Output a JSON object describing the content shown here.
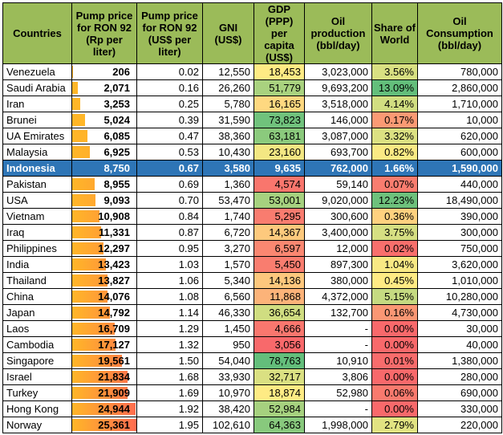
{
  "headers": {
    "country": "Countries",
    "pump_rp": "Pump price for RON 92 (Rp per liter)",
    "pump_usd": "Pump price for RON 92 (US$ per liter)",
    "gni": "GNI (US$)",
    "gdp": "GDP (PPP) per capita (US$)",
    "oil_prod": "Oil production (bbl/day)",
    "share": "Share of World",
    "consumption": "Oil Consumption (bbl/day)"
  },
  "colors": {
    "header_bg": "#9bbb59",
    "highlight_row": "#2e75b6",
    "scale_green": "#63be7b",
    "scale_yellow": "#ffeb84",
    "scale_red": "#f8696b",
    "databar": "#ffb628"
  },
  "highlight_country": "Indonesia",
  "rows": [
    {
      "country": "Venezuela",
      "pump_rp": "206",
      "pump_rp_value": 206,
      "pump_usd": "0.02",
      "gni": "12,550",
      "gdp": "18,453",
      "gdp_value": 18453,
      "oil_prod": "3,023,000",
      "share": "3.56%",
      "share_value": 3.56,
      "consumption": "780,000"
    },
    {
      "country": "Saudi Arabia",
      "pump_rp": "2,071",
      "pump_rp_value": 2071,
      "pump_usd": "0.16",
      "gni": "26,260",
      "gdp": "51,779",
      "gdp_value": 51779,
      "oil_prod": "9,693,200",
      "share": "13.09%",
      "share_value": 13.09,
      "consumption": "2,860,000"
    },
    {
      "country": "Iran",
      "pump_rp": "3,253",
      "pump_rp_value": 3253,
      "pump_usd": "0.25",
      "gni": "5,780",
      "gdp": "16,165",
      "gdp_value": 16165,
      "oil_prod": "3,518,000",
      "share": "4.14%",
      "share_value": 4.14,
      "consumption": "1,710,000"
    },
    {
      "country": "Brunei",
      "pump_rp": "5,024",
      "pump_rp_value": 5024,
      "pump_usd": "0.39",
      "gni": "31,590",
      "gdp": "73,823",
      "gdp_value": 73823,
      "oil_prod": "146,000",
      "share": "0.17%",
      "share_value": 0.17,
      "consumption": "10,000"
    },
    {
      "country": "UA Emirates",
      "pump_rp": "6,085",
      "pump_rp_value": 6085,
      "pump_usd": "0.47",
      "gni": "38,360",
      "gdp": "63,181",
      "gdp_value": 63181,
      "oil_prod": "3,087,000",
      "share": "3.32%",
      "share_value": 3.32,
      "consumption": "620,000"
    },
    {
      "country": "Malaysia",
      "pump_rp": "6,925",
      "pump_rp_value": 6925,
      "pump_usd": "0.53",
      "gni": "10,430",
      "gdp": "23,160",
      "gdp_value": 23160,
      "oil_prod": "693,700",
      "share": "0.82%",
      "share_value": 0.82,
      "consumption": "600,000"
    },
    {
      "country": "Indonesia",
      "pump_rp": "8,750",
      "pump_rp_value": 8750,
      "pump_usd": "0.67",
      "gni": "3,580",
      "gdp": "9,635",
      "gdp_value": 9635,
      "oil_prod": "762,000",
      "share": "1.66%",
      "share_value": 1.66,
      "consumption": "1,590,000"
    },
    {
      "country": "Pakistan",
      "pump_rp": "8,955",
      "pump_rp_value": 8955,
      "pump_usd": "0.69",
      "gni": "1,360",
      "gdp": "4,574",
      "gdp_value": 4574,
      "oil_prod": "59,140",
      "share": "0.07%",
      "share_value": 0.07,
      "consumption": "440,000"
    },
    {
      "country": "USA",
      "pump_rp": "9,093",
      "pump_rp_value": 9093,
      "pump_usd": "0.70",
      "gni": "53,470",
      "gdp": "53,001",
      "gdp_value": 53001,
      "oil_prod": "9,020,000",
      "share": "12.23%",
      "share_value": 12.23,
      "consumption": "18,490,000"
    },
    {
      "country": "Vietnam",
      "pump_rp": "10,908",
      "pump_rp_value": 10908,
      "pump_usd": "0.84",
      "gni": "1,740",
      "gdp": "5,295",
      "gdp_value": 5295,
      "oil_prod": "300,600",
      "share": "0.36%",
      "share_value": 0.36,
      "consumption": "390,000"
    },
    {
      "country": "Iraq",
      "pump_rp": "11,331",
      "pump_rp_value": 11331,
      "pump_usd": "0.87",
      "gni": "6,720",
      "gdp": "14,367",
      "gdp_value": 14367,
      "oil_prod": "3,400,000",
      "share": "3.75%",
      "share_value": 3.75,
      "consumption": "300,000"
    },
    {
      "country": "Philippines",
      "pump_rp": "12,297",
      "pump_rp_value": 12297,
      "pump_usd": "0.95",
      "gni": "3,270",
      "gdp": "6,597",
      "gdp_value": 6597,
      "oil_prod": "12,000",
      "share": "0.02%",
      "share_value": 0.02,
      "consumption": "750,000"
    },
    {
      "country": "India",
      "pump_rp": "13,423",
      "pump_rp_value": 13423,
      "pump_usd": "1.03",
      "gni": "1,570",
      "gdp": "5,450",
      "gdp_value": 5450,
      "oil_prod": "897,300",
      "share": "1.04%",
      "share_value": 1.04,
      "consumption": "3,620,000"
    },
    {
      "country": "Thailand",
      "pump_rp": "13,827",
      "pump_rp_value": 13827,
      "pump_usd": "1.06",
      "gni": "5,340",
      "gdp": "14,136",
      "gdp_value": 14136,
      "oil_prod": "380,000",
      "share": "0.45%",
      "share_value": 0.45,
      "consumption": "1,010,000"
    },
    {
      "country": "China",
      "pump_rp": "14,076",
      "pump_rp_value": 14076,
      "pump_usd": "1.08",
      "gni": "6,560",
      "gdp": "11,868",
      "gdp_value": 11868,
      "oil_prod": "4,372,000",
      "share": "5.15%",
      "share_value": 5.15,
      "consumption": "10,280,000"
    },
    {
      "country": "Japan",
      "pump_rp": "14,792",
      "pump_rp_value": 14792,
      "pump_usd": "1.14",
      "gni": "46,330",
      "gdp": "36,654",
      "gdp_value": 36654,
      "oil_prod": "132,700",
      "share": "0.16%",
      "share_value": 0.16,
      "consumption": "4,730,000"
    },
    {
      "country": "Laos",
      "pump_rp": "16,709",
      "pump_rp_value": 16709,
      "pump_usd": "1.29",
      "gni": "1,450",
      "gdp": "4,666",
      "gdp_value": 4666,
      "oil_prod": "-",
      "share": "0.00%",
      "share_value": 0,
      "consumption": "30,000"
    },
    {
      "country": "Cambodia",
      "pump_rp": "17,127",
      "pump_rp_value": 17127,
      "pump_usd": "1.32",
      "gni": "950",
      "gdp": "3,056",
      "gdp_value": 3056,
      "oil_prod": "-",
      "share": "0.00%",
      "share_value": 0,
      "consumption": "40,000"
    },
    {
      "country": "Singapore",
      "pump_rp": "19,561",
      "pump_rp_value": 19561,
      "pump_usd": "1.50",
      "gni": "54,040",
      "gdp": "78,763",
      "gdp_value": 78763,
      "oil_prod": "10,910",
      "share": "0.01%",
      "share_value": 0.01,
      "consumption": "1,380,000"
    },
    {
      "country": "Israel",
      "pump_rp": "21,834",
      "pump_rp_value": 21834,
      "pump_usd": "1.68",
      "gni": "33,930",
      "gdp": "32,717",
      "gdp_value": 32717,
      "oil_prod": "3,806",
      "share": "0.00%",
      "share_value": 0,
      "consumption": "280,000"
    },
    {
      "country": "Turkey",
      "pump_rp": "21,909",
      "pump_rp_value": 21909,
      "pump_usd": "1.69",
      "gni": "10,970",
      "gdp": "18,874",
      "gdp_value": 18874,
      "oil_prod": "52,980",
      "share": "0.06%",
      "share_value": 0.06,
      "consumption": "690,000"
    },
    {
      "country": "Hong Kong",
      "pump_rp": "24,944",
      "pump_rp_value": 24944,
      "pump_usd": "1.92",
      "gni": "38,420",
      "gdp": "52,984",
      "gdp_value": 52984,
      "oil_prod": "-",
      "share": "0.00%",
      "share_value": 0,
      "consumption": "330,000"
    },
    {
      "country": "Norway",
      "pump_rp": "25,361",
      "pump_rp_value": 25361,
      "pump_usd": "1.95",
      "gni": "102,610",
      "gdp": "64,363",
      "gdp_value": 64363,
      "oil_prod": "1,998,000",
      "share": "2.79%",
      "share_value": 2.79,
      "consumption": "220,000"
    }
  ]
}
